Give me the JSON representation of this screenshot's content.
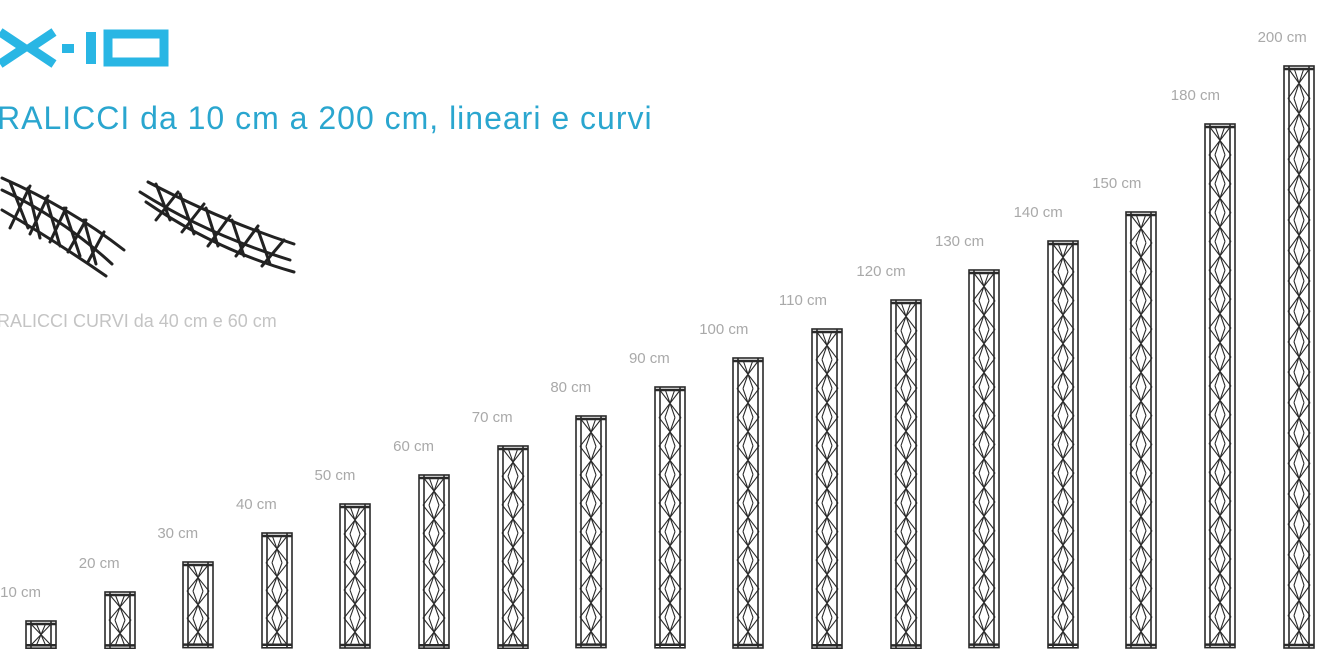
{
  "logo": {
    "text": "X-10",
    "color": "#29b6e4"
  },
  "headline": {
    "text": "RALICCI da 10 cm a 200 cm, lineari e curvi",
    "color": "#2aa6cf"
  },
  "curved": {
    "caption": "RALICCI CURVI da 40 cm e 60 cm",
    "items": [
      {
        "name": "curved-truss-40"
      },
      {
        "name": "curved-truss-60"
      }
    ]
  },
  "trusses": {
    "items": [
      {
        "label": "10 cm",
        "length_cm": 10
      },
      {
        "label": "20 cm",
        "length_cm": 20
      },
      {
        "label": "30 cm",
        "length_cm": 30
      },
      {
        "label": "40 cm",
        "length_cm": 40
      },
      {
        "label": "50 cm",
        "length_cm": 50
      },
      {
        "label": "60 cm",
        "length_cm": 60
      },
      {
        "label": "70 cm",
        "length_cm": 70
      },
      {
        "label": "80 cm",
        "length_cm": 80
      },
      {
        "label": "90 cm",
        "length_cm": 90
      },
      {
        "label": "100 cm",
        "length_cm": 100
      },
      {
        "label": "110 cm",
        "length_cm": 110
      },
      {
        "label": "120 cm",
        "length_cm": 120
      },
      {
        "label": "130 cm",
        "length_cm": 130
      },
      {
        "label": "140 cm",
        "length_cm": 140
      },
      {
        "label": "150 cm",
        "length_cm": 150
      },
      {
        "label": "180 cm",
        "length_cm": 180
      },
      {
        "label": "200 cm",
        "length_cm": 200
      }
    ]
  }
}
